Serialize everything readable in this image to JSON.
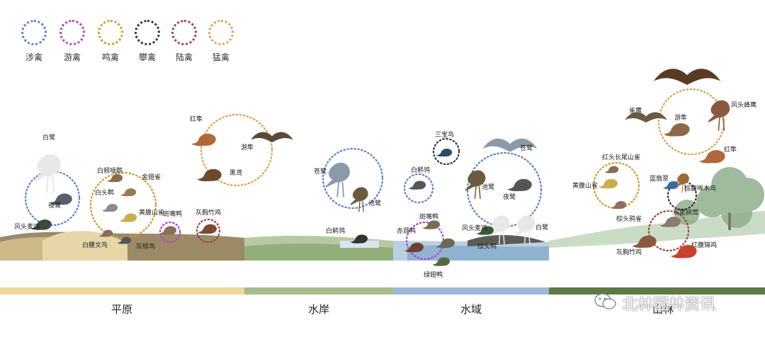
{
  "legend": [
    {
      "label": "涉禽",
      "color": "#5a7fd6"
    },
    {
      "label": "游禽",
      "color": "#b43fcf"
    },
    {
      "label": "鸣禽",
      "color": "#d19a2a"
    },
    {
      "label": "攀禽",
      "color": "#333333"
    },
    {
      "label": "陆禽",
      "color": "#a04040"
    },
    {
      "label": "猛禽",
      "color": "#e0a050"
    }
  ],
  "zones": [
    {
      "label": "平原",
      "color": "#f0d79a"
    },
    {
      "label": "水岸",
      "color": "#a8bd8a"
    },
    {
      "label": "水域",
      "color": "#9cbad6"
    },
    {
      "label": "山林",
      "color": "#5f7a45"
    }
  ],
  "birds": {
    "bailu_1": "白鹭",
    "yelu_1": "夜鹭",
    "fengtoumaiji": "风头麦鸡",
    "baijiaobeiju": "白颊噪鹛",
    "jinchique": "金翅雀",
    "baitouwu": "白头鹎",
    "huangfushanque": "黄腹山雀",
    "baiyaowenniao": "白腰文鸟",
    "huijiaoniao": "灰椋鸟",
    "banzuiya": "斑嘴鸭",
    "huixiongzhuji": "灰胸竹鸡",
    "hongsun_1": "红隼",
    "yousun": "游隼",
    "heiyuan": "黑鸢",
    "canglu_1": "苍鹭",
    "chilu_1": "池鹭",
    "baijiling_1": "白鹡鸰",
    "sanbaoniao": "三宝鸟",
    "baijiling_2": "白鹡鸰",
    "banzuiya_2": "斑嘴鸭",
    "chijingya": "赤颈鸭",
    "lvchiya": "绿翅鸭",
    "fengtoumaiji_2": "风头麦鸡",
    "canglu_2": "苍鹭",
    "chilu_2": "池鹭",
    "yelu_2": "夜鹭",
    "bailu_2": "白鹭",
    "lvtouya": "绿头鸭",
    "queying": "雀鹰",
    "yousun_2": "游隼",
    "fengtoufengying": "风头蜂鹰",
    "hongsun_2": "红隼",
    "hongtouchangweishanque": "红头长尾山雀",
    "huangfushanque_2": "黄腹山雀",
    "landiancui": "蓝翡翠",
    "zongbeibaiwenwu": "棕腹啄木鸟",
    "zongtouyaque": "棕头鸦雀",
    "changweihuilian": "灰尾鹟莺",
    "huixiongzhuji_2": "灰胸竹鸡",
    "hongfujinji": "红腹锦鸡"
  },
  "watermark": "北林园林资讯"
}
